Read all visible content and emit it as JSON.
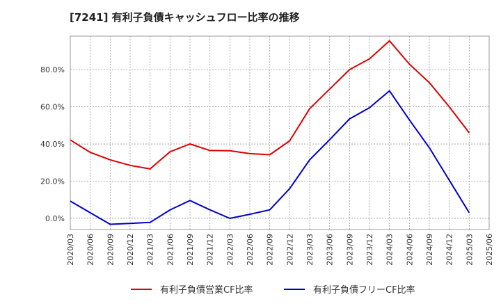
{
  "chart_data": {
    "type": "line",
    "title": "[7241]  有利子負債キャッシュフロー比率の推移",
    "x": [
      "2020/03",
      "2020/06",
      "2020/09",
      "2020/12",
      "2021/03",
      "2021/06",
      "2021/09",
      "2021/12",
      "2022/03",
      "2022/06",
      "2022/09",
      "2022/12",
      "2023/03",
      "2023/06",
      "2023/09",
      "2023/12",
      "2024/03",
      "2024/06",
      "2024/09",
      "2024/12",
      "2025/03",
      "2025/06"
    ],
    "series": [
      {
        "name": "有利子負債営業CF比率",
        "color": "#dd0000",
        "values": [
          42.2,
          35.5,
          31.5,
          28.5,
          26.6,
          35.8,
          40.0,
          36.5,
          36.4,
          34.8,
          34.2,
          41.7,
          59.0,
          69.5,
          80.0,
          85.8,
          95.5,
          83.0,
          73.0,
          60.0,
          46.0,
          null
        ]
      },
      {
        "name": "有利子負債フリーCF比率",
        "color": "#0000cc",
        "values": [
          9.3,
          3.0,
          -3.2,
          -2.7,
          -2.2,
          4.5,
          9.6,
          4.6,
          0.0,
          2.2,
          4.6,
          16.0,
          31.5,
          42.3,
          53.5,
          59.5,
          68.6,
          53.0,
          38.0,
          20.5,
          3.0,
          null
        ]
      }
    ],
    "yticks": [
      "0.0%",
      "20.0%",
      "40.0%",
      "60.0%",
      "80.0%"
    ],
    "ylim": [
      -6,
      98
    ],
    "grid": true,
    "legend_position": "bottom"
  }
}
